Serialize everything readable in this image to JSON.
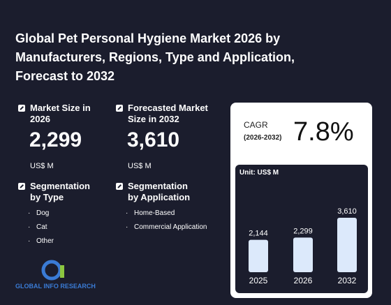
{
  "header": {
    "title": "Global Pet Personal Hygiene Market 2026 by Manufacturers, Regions, Type and Application, Forecast to 2032"
  },
  "stats": [
    {
      "label": "Market Size in 2026",
      "value": "2,299",
      "unit": "US$ M"
    },
    {
      "label": "Forecasted Market Size in 2032",
      "value": "3,610",
      "unit": "US$ M"
    }
  ],
  "segments": [
    {
      "title": "Segmentation by Type",
      "items": [
        "Dog",
        "Cat",
        "Other"
      ]
    },
    {
      "title": "Segmentation by Application",
      "items": [
        "Home-Based",
        "Commercial Application"
      ]
    }
  ],
  "logo": {
    "text": "GLOBAL INFO RESEARCH"
  },
  "cagr": {
    "label": "CAGR",
    "period": "(2026-2032)",
    "value": "7.8%"
  },
  "chart_data": {
    "type": "bar",
    "unit": "Unit: US$ M",
    "categories": [
      "2025",
      "2026",
      "2032"
    ],
    "values": [
      2144,
      2299,
      3610
    ],
    "value_labels": [
      "2,144",
      "2,299",
      "3,610"
    ],
    "color": "#dce9fb"
  }
}
